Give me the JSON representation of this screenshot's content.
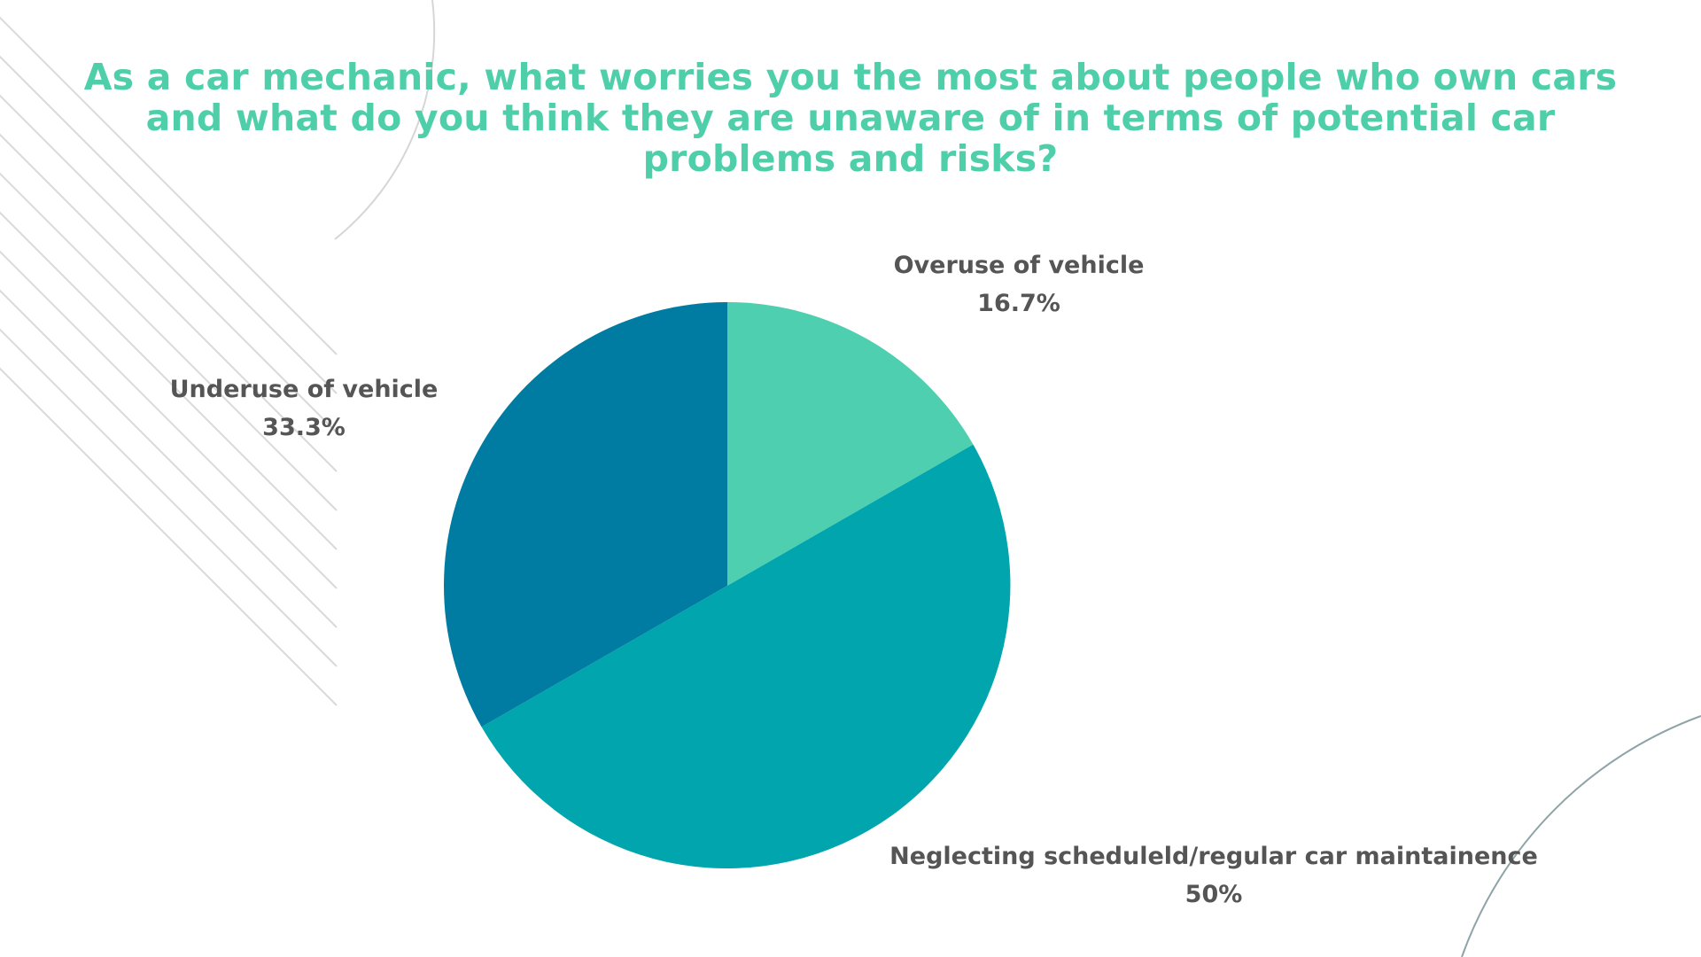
{
  "chart_data": {
    "type": "pie",
    "title": "As a car mechanic, what worries you the most about people who own cars and what do you think they are unaware of in terms of potential car problems and risks?",
    "slices": [
      {
        "label": "Overuse of vehicle",
        "value": 16.7,
        "value_label": "16.7%",
        "color": "#4ecfaf"
      },
      {
        "label": "Neglecting scheduleld/regular car maintainence",
        "value": 50,
        "value_label": "50%",
        "color": "#00a5ad"
      },
      {
        "label": "Underuse of vehicle",
        "value": 33.3,
        "value_label": "33.3%",
        "color": "#007ca3"
      }
    ],
    "start_angle": "12 o'clock",
    "direction": "clockwise",
    "legend": "none"
  },
  "colors": {
    "title": "#4ecfaa",
    "label_text": "#555555",
    "decor_lines": "#d9d9d9",
    "decor_arc": "#8fa4a8"
  }
}
